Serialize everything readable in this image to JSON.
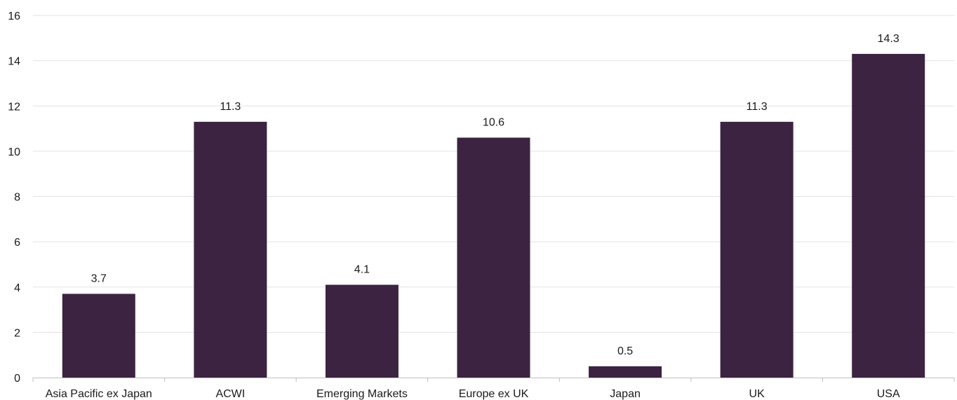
{
  "chart_data": {
    "type": "bar",
    "title": "",
    "xlabel": "",
    "ylabel": "",
    "categories": [
      "Asia Pacific ex Japan",
      "ACWI",
      "Emerging Markets",
      "Europe ex UK",
      "Japan",
      "UK",
      "USA"
    ],
    "values": [
      3.7,
      11.3,
      4.1,
      10.6,
      0.5,
      11.3,
      14.3
    ],
    "data_labels": [
      "3.7",
      "11.3",
      "4.1",
      "10.6",
      "0.5",
      "11.3",
      "14.3"
    ],
    "y_ticks": [
      "0",
      "2",
      "4",
      "6",
      "8",
      "10",
      "12",
      "14",
      "16"
    ],
    "ylim": [
      0,
      16
    ],
    "grid": true,
    "legend": "none",
    "bar_color": "#3b2341"
  }
}
